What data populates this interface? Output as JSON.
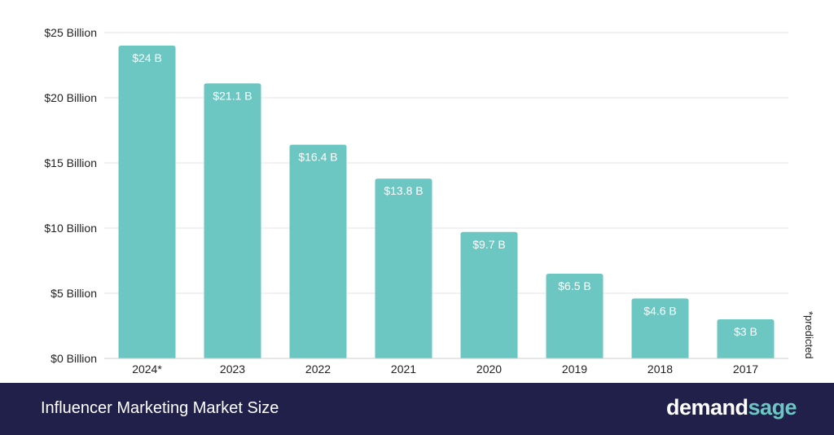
{
  "colors": {
    "bar": "#6cc7c2",
    "footer_bg": "#21204a",
    "accent": "#6cc7c2"
  },
  "footer": {
    "title": "Influencer Marketing Market Size",
    "logo_part1": "demand",
    "logo_part2": "sage"
  },
  "footnote": "*predicted",
  "chart_data": {
    "type": "bar",
    "title": "",
    "xlabel": "",
    "ylabel": "",
    "categories": [
      "2024*",
      "2023",
      "2022",
      "2021",
      "2020",
      "2019",
      "2018",
      "2017"
    ],
    "values": [
      24,
      21.1,
      16.4,
      13.8,
      9.7,
      6.5,
      4.6,
      3
    ],
    "value_labels": [
      "$24 B",
      "$21.1 B",
      "$16.4 B",
      "$13.8 B",
      "$9.7 B",
      "$6.5 B",
      "$4.6 B",
      "$3 B"
    ],
    "ylim": [
      0,
      25
    ],
    "yticks": [
      0,
      5,
      10,
      15,
      20,
      25
    ],
    "ytick_labels": [
      "$0 Billion",
      "$5 Billion",
      "$10 Billion",
      "$15 Billion",
      "$20 Billion",
      "$25 Billion"
    ],
    "grid": true,
    "legend": "none"
  }
}
